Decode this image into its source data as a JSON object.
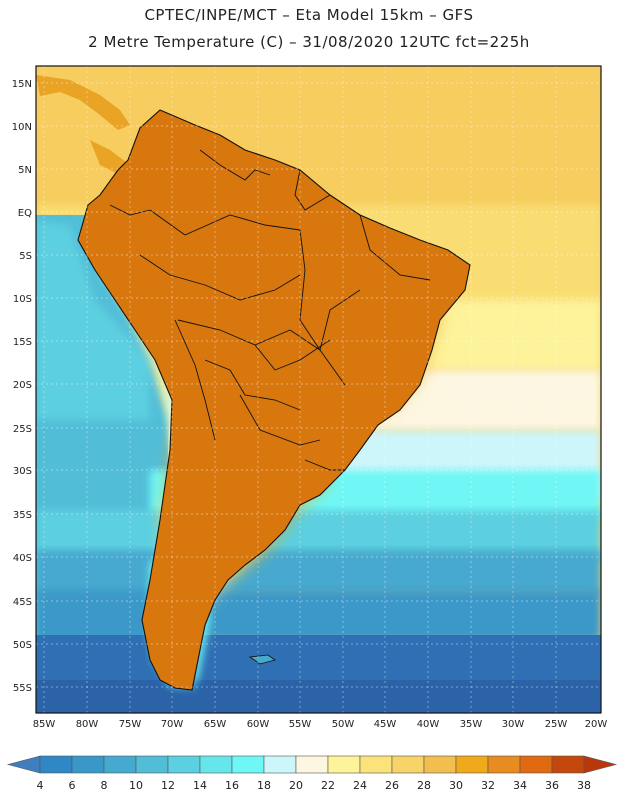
{
  "header": {
    "line1": "CPTEC/INPE/MCT –  Eta Model 15km – GFS",
    "line2": "2 Metre Temperature (C) – 31/08/2020 12UTC fct=225h"
  },
  "axes": {
    "lat_labels": [
      "15N",
      "10N",
      "5N",
      "EQ",
      "5S",
      "10S",
      "15S",
      "20S",
      "25S",
      "30S",
      "35S",
      "40S",
      "45S",
      "50S",
      "55S"
    ],
    "lon_labels": [
      "85W",
      "80W",
      "75W",
      "70W",
      "65W",
      "60W",
      "55W",
      "50W",
      "45W",
      "40W",
      "35W",
      "30W",
      "25W",
      "20W"
    ]
  },
  "colorbar": {
    "labels": [
      "4",
      "6",
      "8",
      "10",
      "12",
      "14",
      "16",
      "18",
      "20",
      "22",
      "24",
      "26",
      "28",
      "30",
      "32",
      "34",
      "36",
      "38"
    ],
    "colors": [
      "#3f7fbf",
      "#2f87c5",
      "#3a98c8",
      "#46a9cf",
      "#52bdd7",
      "#5ccfe0",
      "#66e6ea",
      "#6ff7f5",
      "#cdf6fb",
      "#fdf7e2",
      "#fdf39a",
      "#fbe27a",
      "#f8d369",
      "#f1be4f",
      "#f0a91b",
      "#e78c21",
      "#df6a12",
      "#c4480d",
      "#b8380b"
    ]
  },
  "chart_data": {
    "type": "heatmap",
    "title": "2 Metre Temperature (C)",
    "model": "Eta Model 15km – GFS",
    "source": "CPTEC/INPE/MCT",
    "run": "31/08/2020 12UTC",
    "forecast": "fct=225h",
    "units": "C",
    "lon_range": [
      -86,
      -20
    ],
    "lat_range": [
      -57,
      16
    ],
    "levels": [
      4,
      6,
      8,
      10,
      12,
      14,
      16,
      18,
      20,
      22,
      24,
      26,
      28,
      30,
      32,
      34,
      36,
      38
    ]
  }
}
